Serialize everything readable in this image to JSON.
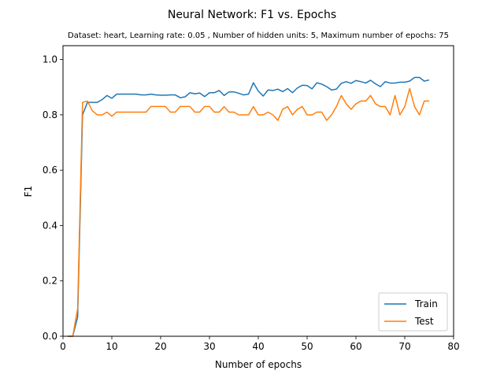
{
  "chart_data": {
    "type": "line",
    "title": "Neural Network: F1 vs. Epochs",
    "subtitle": "Dataset: heart, Learning rate: 0.05 , Number of hidden units: 5, Maximum number of epochs: 75",
    "xlabel": "Number of epochs",
    "ylabel": "F1",
    "xlim": [
      0,
      80
    ],
    "ylim": [
      0,
      1.05
    ],
    "xticks": [
      0,
      10,
      20,
      30,
      40,
      50,
      60,
      70,
      80
    ],
    "xtick_labels": [
      "0",
      "10",
      "20",
      "30",
      "40",
      "50",
      "60",
      "70",
      "80"
    ],
    "yticks": [
      0.0,
      0.2,
      0.4,
      0.6,
      0.8,
      1.0
    ],
    "ytick_labels": [
      "0.0",
      "0.2",
      "0.4",
      "0.6",
      "0.8",
      "1.0"
    ],
    "grid": false,
    "legend_position": "bottom-right",
    "x": [
      1,
      2,
      3,
      4,
      5,
      6,
      7,
      8,
      9,
      10,
      11,
      12,
      13,
      14,
      15,
      16,
      17,
      18,
      19,
      20,
      21,
      22,
      23,
      24,
      25,
      26,
      27,
      28,
      29,
      30,
      31,
      32,
      33,
      34,
      35,
      36,
      37,
      38,
      39,
      40,
      41,
      42,
      43,
      44,
      45,
      46,
      47,
      48,
      49,
      50,
      51,
      52,
      53,
      54,
      55,
      56,
      57,
      58,
      59,
      60,
      61,
      62,
      63,
      64,
      65,
      66,
      67,
      68,
      69,
      70,
      71,
      72,
      73,
      74,
      75
    ],
    "series": [
      {
        "name": "Train",
        "color": "#1f77b4",
        "values": [
          0,
          0,
          0.07,
          0.8,
          0.845,
          0.845,
          0.845,
          0.855,
          0.87,
          0.86,
          0.875,
          0.875,
          0.875,
          0.875,
          0.875,
          0.872,
          0.872,
          0.875,
          0.872,
          0.871,
          0.871,
          0.872,
          0.872,
          0.862,
          0.865,
          0.88,
          0.876,
          0.879,
          0.866,
          0.88,
          0.88,
          0.888,
          0.87,
          0.883,
          0.883,
          0.878,
          0.872,
          0.875,
          0.916,
          0.886,
          0.868,
          0.89,
          0.888,
          0.893,
          0.884,
          0.895,
          0.88,
          0.897,
          0.907,
          0.906,
          0.894,
          0.916,
          0.911,
          0.902,
          0.89,
          0.893,
          0.914,
          0.92,
          0.914,
          0.924,
          0.92,
          0.915,
          0.925,
          0.912,
          0.902,
          0.92,
          0.915,
          0.915,
          0.918,
          0.918,
          0.922,
          0.935,
          0.935,
          0.922,
          0.926
        ]
      },
      {
        "name": "Test",
        "color": "#ff7f0e",
        "values": [
          0,
          0,
          0.1,
          0.845,
          0.85,
          0.815,
          0.8,
          0.8,
          0.81,
          0.795,
          0.81,
          0.81,
          0.81,
          0.81,
          0.81,
          0.81,
          0.81,
          0.83,
          0.83,
          0.83,
          0.83,
          0.81,
          0.81,
          0.83,
          0.83,
          0.83,
          0.81,
          0.81,
          0.83,
          0.83,
          0.81,
          0.81,
          0.83,
          0.81,
          0.81,
          0.8,
          0.8,
          0.8,
          0.83,
          0.8,
          0.8,
          0.81,
          0.8,
          0.78,
          0.82,
          0.83,
          0.8,
          0.82,
          0.83,
          0.8,
          0.8,
          0.81,
          0.81,
          0.78,
          0.8,
          0.83,
          0.87,
          0.84,
          0.82,
          0.84,
          0.85,
          0.85,
          0.87,
          0.84,
          0.83,
          0.83,
          0.8,
          0.87,
          0.8,
          0.83,
          0.895,
          0.83,
          0.8,
          0.85,
          0.85
        ]
      }
    ]
  }
}
